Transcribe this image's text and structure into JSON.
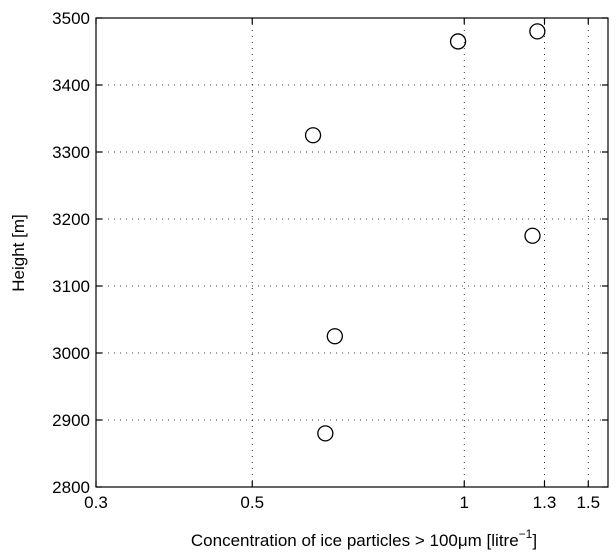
{
  "chart_data": {
    "type": "scatter",
    "xlabel_pre": "Concentration of ice particles > 100",
    "xlabel_mu": "μ",
    "xlabel_unit": "m [litre",
    "xlabel_sup": "−1",
    "xlabel_close": "]",
    "ylabel": "Height [m]",
    "x_scale": "log",
    "xlim": [
      0.3,
      1.6
    ],
    "ylim": [
      2800,
      3500
    ],
    "x_ticks": [
      0.3,
      0.5,
      1,
      1.3,
      1.5
    ],
    "x_tick_labels": [
      "0.3",
      "0.5",
      "1",
      "1.3",
      "1.5"
    ],
    "y_ticks": [
      2800,
      2900,
      3000,
      3100,
      3200,
      3300,
      3400,
      3500
    ],
    "y_tick_labels": [
      "2800",
      "2900",
      "3000",
      "3100",
      "3200",
      "3300",
      "3400",
      "3500"
    ],
    "grid": true,
    "marker": "open-circle",
    "points": [
      {
        "x": 0.98,
        "y": 3465
      },
      {
        "x": 1.27,
        "y": 3480
      },
      {
        "x": 0.61,
        "y": 3325
      },
      {
        "x": 1.25,
        "y": 3175
      },
      {
        "x": 0.655,
        "y": 3025
      },
      {
        "x": 0.635,
        "y": 2880
      }
    ]
  }
}
